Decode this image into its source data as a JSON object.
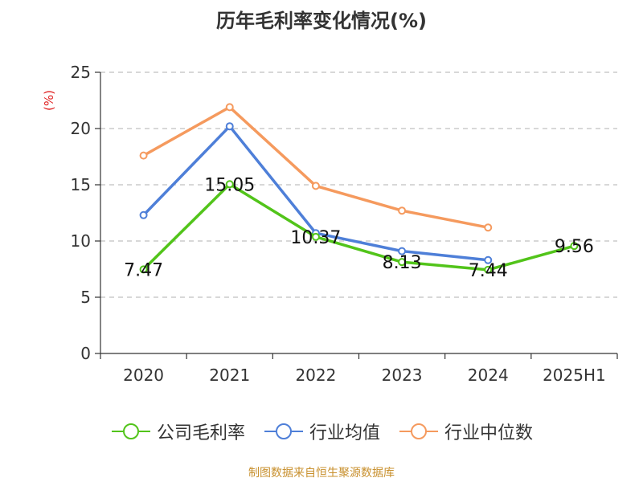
{
  "source_note": "制图数据来自恒生聚源数据库",
  "chart_data": {
    "type": "line",
    "title": "历年毛利率变化情况(%)",
    "ylabel": "(%)",
    "xlabel": "",
    "categories": [
      "2020",
      "2021",
      "2022",
      "2023",
      "2024",
      "2025H1"
    ],
    "ylim": [
      0,
      25
    ],
    "yticks": [
      0,
      5,
      10,
      15,
      20,
      25
    ],
    "grid": true,
    "legend": "bottom",
    "series": [
      {
        "name": "公司毛利率",
        "color": "#52c41a",
        "values": [
          7.47,
          15.05,
          10.37,
          8.13,
          7.44,
          9.56
        ],
        "labels": [
          "7.47",
          "15.05",
          "10.37",
          "8.13",
          "7.44",
          "9.56"
        ]
      },
      {
        "name": "行业均值",
        "color": "#4e7fd8",
        "values": [
          12.3,
          20.2,
          10.7,
          9.1,
          8.3,
          null
        ]
      },
      {
        "name": "行业中位数",
        "color": "#f59a5e",
        "values": [
          17.6,
          21.9,
          14.9,
          12.7,
          11.2,
          null
        ]
      }
    ]
  }
}
